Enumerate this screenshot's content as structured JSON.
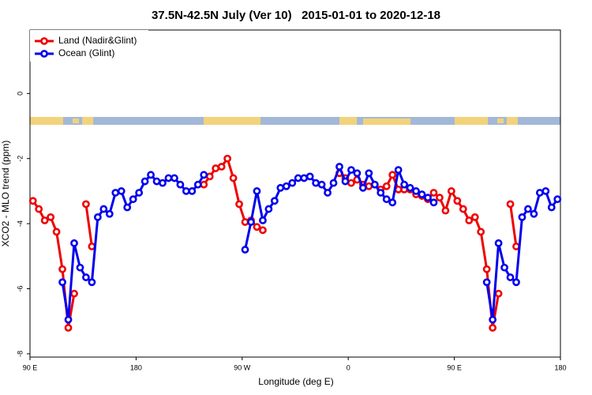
{
  "chart_data": {
    "type": "line",
    "title": "37.5N-42.5N July (Ver 10)   2015-01-01 to 2020-12-18",
    "x_label": "Longitude (deg E)",
    "y_label": "XCO2 - MLO trend (ppm)",
    "xlim": [
      90,
      540
    ],
    "xticks": [
      {
        "value": 90,
        "label": "90 E"
      },
      180,
      {
        "value": 270,
        "label": "90 W"
      },
      {
        "value": 360,
        "label": "0"
      },
      {
        "value": 450,
        "label": "90 E"
      },
      {
        "value": 540,
        "label": "180"
      }
    ],
    "ylim": [
      -8.1,
      1.95
    ],
    "yticks": [
      0,
      -2,
      -4,
      -6,
      -8
    ],
    "legend": "top-left",
    "x": [
      92.5,
      97.5,
      102.5,
      107.5,
      112.5,
      117.5,
      122.5,
      127.5,
      132.5,
      137.5,
      142.5,
      147.5,
      152.5,
      157.5,
      162.5,
      167.5,
      172.5,
      177.5,
      182.5,
      187.5,
      192.5,
      197.5,
      202.5,
      207.5,
      212.5,
      217.5,
      222.5,
      227.5,
      232.5,
      237.5,
      242.5,
      247.5,
      252.5,
      257.5,
      262.5,
      267.5,
      272.5,
      277.5,
      282.5,
      287.5,
      292.5,
      297.5,
      302.5,
      307.5,
      312.5,
      317.5,
      322.5,
      327.5,
      332.5,
      337.5,
      342.5,
      347.5,
      352.5,
      357.5,
      362.5,
      367.5,
      372.5,
      377.5,
      382.5,
      387.5,
      392.5,
      397.5,
      402.5,
      407.5,
      412.5,
      417.5,
      422.5,
      427.5,
      432.5,
      437.5,
      442.5,
      447.5,
      452.5,
      457.5,
      462.5,
      467.5,
      472.5,
      477.5,
      482.5,
      487.5,
      492.5,
      497.5,
      502.5,
      507.5,
      512.5,
      517.5,
      522.5,
      527.5,
      532.5,
      537.5
    ],
    "series": [
      {
        "name": "Land (Nadir&Glint)",
        "color": "#ee0000",
        "values": [
          -3.3,
          -3.55,
          -3.9,
          -3.8,
          -4.25,
          -5.4,
          -7.2,
          -6.15,
          null,
          -3.4,
          -4.7,
          null,
          null,
          null,
          null,
          null,
          null,
          null,
          null,
          null,
          null,
          null,
          null,
          null,
          null,
          null,
          null,
          null,
          null,
          -2.8,
          -2.55,
          -2.3,
          -2.25,
          -2.0,
          -2.6,
          -3.4,
          -3.95,
          -3.9,
          -4.1,
          -4.2,
          null,
          null,
          null,
          null,
          null,
          null,
          null,
          null,
          null,
          null,
          null,
          null,
          -2.45,
          -2.6,
          -2.75,
          -2.65,
          -2.8,
          -2.85,
          -2.8,
          -2.95,
          -2.85,
          -2.5,
          -2.95,
          -2.95,
          -2.95,
          -3.1,
          -3.15,
          -3.25,
          -3.05,
          -3.2,
          -3.6,
          -3.0,
          -3.3,
          -3.55,
          -3.9,
          -3.8,
          -4.25,
          -5.4,
          -7.2,
          -6.15,
          null,
          -3.4,
          -4.7,
          null,
          null,
          null,
          null,
          null,
          null,
          null
        ]
      },
      {
        "name": "Ocean (Glint)",
        "color": "#0000ee",
        "values": [
          null,
          null,
          null,
          null,
          null,
          -5.8,
          -6.95,
          -4.6,
          -5.35,
          -5.65,
          -5.8,
          -3.8,
          -3.55,
          -3.7,
          -3.05,
          -3.0,
          -3.5,
          -3.25,
          -3.05,
          -2.7,
          -2.5,
          -2.7,
          -2.75,
          -2.6,
          -2.6,
          -2.8,
          -3.0,
          -3.0,
          -2.8,
          -2.5,
          null,
          null,
          null,
          null,
          null,
          null,
          -4.8,
          -3.95,
          -3.0,
          -3.9,
          -3.55,
          -3.3,
          -2.9,
          -2.85,
          -2.75,
          -2.6,
          -2.6,
          -2.55,
          -2.75,
          -2.8,
          -3.05,
          -2.75,
          -2.25,
          -2.7,
          -2.35,
          -2.45,
          -2.9,
          -2.45,
          -2.8,
          -3.05,
          -3.25,
          -3.35,
          -2.35,
          -2.8,
          -2.9,
          -3.0,
          -3.1,
          -3.2,
          -3.35,
          null,
          null,
          null,
          null,
          null,
          null,
          null,
          null,
          -5.8,
          -6.95,
          -4.6,
          -5.35,
          -5.65,
          -5.8,
          -3.8,
          -3.55,
          -3.7,
          -3.05,
          -3.0,
          -3.5,
          -3.25
        ]
      }
    ]
  }
}
